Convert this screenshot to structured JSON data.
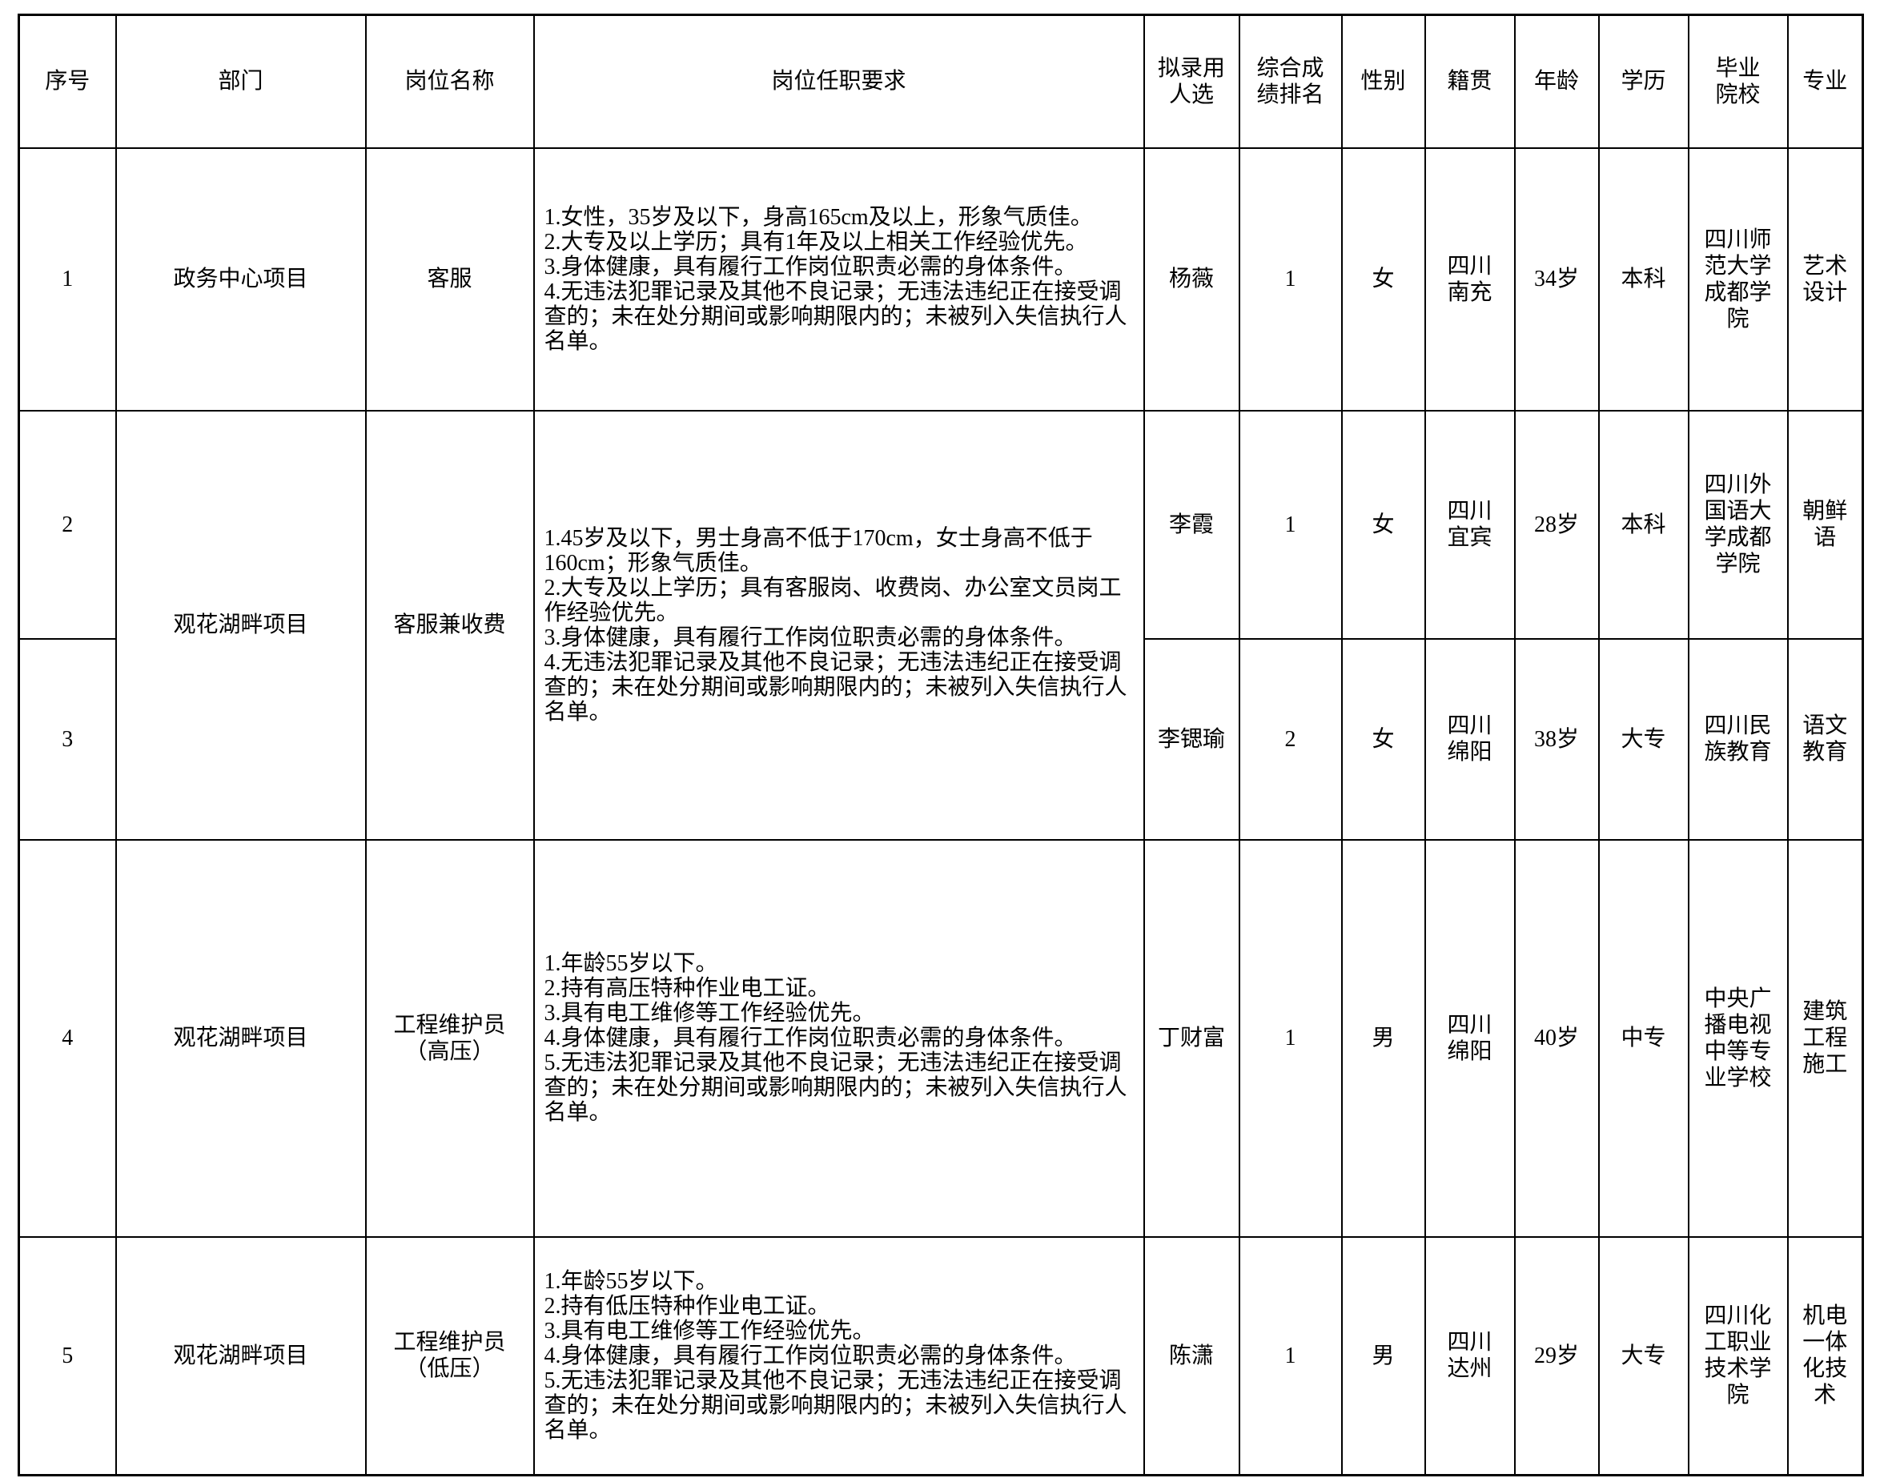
{
  "table": {
    "headers": [
      "序号",
      "部门",
      "岗位名称",
      "岗位任职要求",
      "拟录用\n人选",
      "综合成\n绩排名",
      "性别",
      "籍贯",
      "年龄",
      "学历",
      "毕业\n院校",
      "专业"
    ],
    "rows": [
      {
        "no": "1",
        "dept": "政务中心项目",
        "post": "客服",
        "req": "1.女性，35岁及以下，身高165cm及以上，形象气质佳。\n2.大专及以上学历；具有1年及以上相关工作经验优先。\n3.身体健康，具有履行工作岗位职责必需的身体条件。\n4.无违法犯罪记录及其他不良记录；无违法违纪正在接受调\n查的；未在处分期间或影响期限内的；未被列入失信执行人\n名单。",
        "candidate": "杨薇",
        "rank": "1",
        "gender": "女",
        "origin": "四川\n南充",
        "age": "34岁",
        "education": "本科",
        "school": "四川师\n范大学\n成都学\n院",
        "major": "艺术\n设计"
      },
      {
        "no": "2",
        "dept": "观花湖畔项目",
        "post": "客服兼收费",
        "req": "1.45岁及以下，男士身高不低于170cm，女士身高不低于\n160cm；形象气质佳。\n2.大专及以上学历；具有客服岗、收费岗、办公室文员岗工\n作经验优先。\n3.身体健康，具有履行工作岗位职责必需的身体条件。\n4.无违法犯罪记录及其他不良记录；无违法违纪正在接受调\n查的；未在处分期间或影响期限内的；未被列入失信执行人\n名单。",
        "rowspan": 2,
        "candidate": "李霞",
        "rank": "1",
        "gender": "女",
        "origin": "四川\n宜宾",
        "age": "28岁",
        "education": "本科",
        "school": "四川外\n国语大\n学成都\n学院",
        "major": "朝鲜\n语"
      },
      {
        "no": "3",
        "candidate": "李锶瑜",
        "rank": "2",
        "gender": "女",
        "origin": "四川\n绵阳",
        "age": "38岁",
        "education": "大专",
        "school": "四川民\n族教育",
        "major": "语文\n教育"
      },
      {
        "no": "4",
        "dept": "观花湖畔项目",
        "post": "工程维护员\n（高压）",
        "req": "1.年龄55岁以下。\n2.持有高压特种作业电工证。\n3.具有电工维修等工作经验优先。\n4.身体健康，具有履行工作岗位职责必需的身体条件。\n5.无违法犯罪记录及其他不良记录；无违法违纪正在接受调\n查的；未在处分期间或影响期限内的；未被列入失信执行人\n名单。",
        "candidate": "丁财富",
        "rank": "1",
        "gender": "男",
        "origin": "四川\n绵阳",
        "age": "40岁",
        "education": "中专",
        "school": "中央广\n播电视\n中等专\n业学校",
        "major": "建筑\n工程\n施工"
      },
      {
        "no": "5",
        "dept": "观花湖畔项目",
        "post": "工程维护员\n（低压）",
        "req": "1.年龄55岁以下。\n2.持有低压特种作业电工证。\n3.具有电工维修等工作经验优先。\n4.身体健康，具有履行工作岗位职责必需的身体条件。\n5.无违法犯罪记录及其他不良记录；无违法违纪正在接受调\n查的；未在处分期间或影响期限内的；未被列入失信执行人\n名单。",
        "candidate": "陈潇",
        "rank": "1",
        "gender": "男",
        "origin": "四川\n达州",
        "age": "29岁",
        "education": "大专",
        "school": "四川化\n工职业\n技术学\n院",
        "major": "机电\n一体\n化技\n术"
      }
    ]
  }
}
